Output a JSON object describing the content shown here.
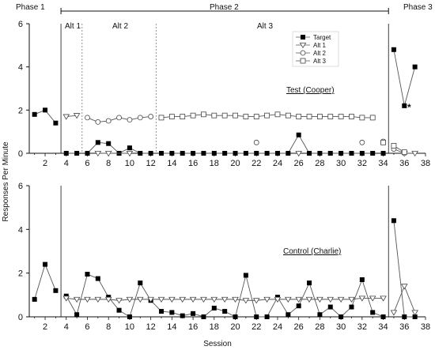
{
  "phase_labels": [
    "Phase 1",
    "Phase 2",
    "Phase 3"
  ],
  "top_condition_labels": [
    "Alt 1",
    "Alt 2",
    "Alt 3"
  ],
  "y_axis_label": "Responses Per Minute",
  "x_axis_label": "Session",
  "legend": [
    {
      "label": "Target",
      "marker": "square-filled"
    },
    {
      "label": "Alt 1",
      "marker": "triangle-down-open"
    },
    {
      "label": "Alt 2",
      "marker": "circle-open"
    },
    {
      "label": "Alt 3",
      "marker": "square-open"
    }
  ],
  "colors": {
    "line": "#555555",
    "marker_fill": "#000000",
    "open_fill": "#ffffff",
    "dashed": "#777777"
  },
  "chart_data": [
    {
      "type": "line",
      "panel_label": "Test (Cooper)",
      "xlim": [
        0.5,
        38
      ],
      "ylim": [
        0,
        6
      ],
      "x_ticks": [
        2,
        4,
        6,
        8,
        10,
        12,
        14,
        16,
        18,
        20,
        22,
        24,
        26,
        28,
        30,
        32,
        34,
        36,
        38
      ],
      "y_ticks": [
        0,
        2,
        4,
        6
      ],
      "phase_change_sessions": [
        3.5,
        34.5
      ],
      "condition_change_sessions": [
        5.5,
        12.5
      ],
      "annotation": "*",
      "series": [
        {
          "name": "Target",
          "marker": "square-filled",
          "segments": [
            [
              [
                1,
                1.8
              ],
              [
                2,
                2.0
              ],
              [
                3,
                1.4
              ]
            ],
            [
              [
                4,
                0
              ],
              [
                5,
                0
              ]
            ],
            [
              [
                6,
                0
              ],
              [
                7,
                0.5
              ],
              [
                8,
                0.45
              ],
              [
                9,
                0
              ],
              [
                10,
                0.25
              ],
              [
                11,
                0
              ],
              [
                12,
                0
              ]
            ],
            [
              [
                13,
                0
              ],
              [
                14,
                0
              ],
              [
                15,
                0
              ],
              [
                16,
                0
              ],
              [
                17,
                0
              ],
              [
                18,
                0
              ],
              [
                19,
                0
              ],
              [
                20,
                0
              ],
              [
                21,
                0
              ],
              [
                22,
                0
              ],
              [
                23,
                0
              ],
              [
                24,
                0
              ],
              [
                25,
                0
              ],
              [
                26,
                0.85
              ],
              [
                27,
                0
              ],
              [
                28,
                0
              ],
              [
                29,
                0
              ],
              [
                30,
                0
              ],
              [
                31,
                0
              ],
              [
                32,
                0
              ],
              [
                33,
                0
              ]
            ],
            [
              [
                34,
                0
              ]
            ],
            [
              [
                35,
                4.8
              ],
              [
                36,
                2.2
              ],
              [
                37,
                4.0
              ]
            ]
          ]
        },
        {
          "name": "Alt 1",
          "marker": "triangle-down-open",
          "segments": [
            [
              [
                4,
                1.7
              ],
              [
                5,
                1.75
              ]
            ],
            [
              [
                7,
                0
              ],
              [
                8,
                0
              ],
              [
                10,
                0
              ]
            ],
            [
              [
                26,
                0
              ]
            ],
            [
              [
                36,
                0
              ],
              [
                37,
                0
              ]
            ]
          ]
        },
        {
          "name": "Alt 2",
          "marker": "circle-open",
          "segments": [
            [
              [
                6,
                1.65
              ],
              [
                7,
                1.45
              ],
              [
                8,
                1.5
              ],
              [
                9,
                1.65
              ],
              [
                10,
                1.55
              ],
              [
                11,
                1.65
              ],
              [
                12,
                1.7
              ]
            ],
            [
              [
                22,
                0.5
              ]
            ],
            [
              [
                32,
                0.5
              ]
            ],
            [
              [
                34,
                0.55
              ]
            ],
            [
              [
                35,
                0.2
              ],
              [
                36,
                0
              ]
            ]
          ]
        },
        {
          "name": "Alt 3",
          "marker": "square-open",
          "segments": [
            [
              [
                13,
                1.65
              ],
              [
                14,
                1.7
              ],
              [
                15,
                1.7
              ],
              [
                16,
                1.75
              ],
              [
                17,
                1.8
              ],
              [
                18,
                1.75
              ],
              [
                19,
                1.75
              ],
              [
                20,
                1.75
              ],
              [
                21,
                1.7
              ],
              [
                22,
                1.7
              ],
              [
                23,
                1.75
              ],
              [
                24,
                1.8
              ],
              [
                25,
                1.75
              ],
              [
                26,
                1.7
              ],
              [
                27,
                1.7
              ],
              [
                28,
                1.7
              ],
              [
                29,
                1.7
              ],
              [
                30,
                1.7
              ],
              [
                31,
                1.7
              ],
              [
                32,
                1.65
              ],
              [
                33,
                1.65
              ]
            ],
            [
              [
                34,
                0.5
              ]
            ],
            [
              [
                35,
                0.35
              ],
              [
                36,
                0.05
              ]
            ]
          ]
        }
      ]
    },
    {
      "type": "line",
      "panel_label": "Control (Charlie)",
      "xlim": [
        0.5,
        38
      ],
      "ylim": [
        0,
        6
      ],
      "x_ticks": [
        2,
        4,
        6,
        8,
        10,
        12,
        14,
        16,
        18,
        20,
        22,
        24,
        26,
        28,
        30,
        32,
        34,
        36,
        38
      ],
      "y_ticks": [
        0,
        2,
        4,
        6
      ],
      "phase_change_sessions": [
        3.5,
        34.5
      ],
      "series": [
        {
          "name": "Target",
          "marker": "square-filled",
          "segments": [
            [
              [
                1,
                0.8
              ],
              [
                2,
                2.4
              ],
              [
                3,
                1.2
              ]
            ],
            [
              [
                4,
                0.95
              ],
              [
                5,
                0.1
              ],
              [
                6,
                1.95
              ],
              [
                7,
                1.75
              ],
              [
                8,
                0.9
              ],
              [
                9,
                0.3
              ],
              [
                10,
                0
              ],
              [
                11,
                1.55
              ],
              [
                12,
                0.75
              ],
              [
                13,
                0.25
              ],
              [
                14,
                0.2
              ],
              [
                15,
                0.05
              ],
              [
                16,
                0.15
              ],
              [
                17,
                0
              ],
              [
                18,
                0.4
              ],
              [
                19,
                0.25
              ],
              [
                20,
                0
              ],
              [
                21,
                1.9
              ],
              [
                22,
                0
              ],
              [
                23,
                0
              ],
              [
                24,
                0.9
              ],
              [
                25,
                0.1
              ],
              [
                26,
                0.5
              ],
              [
                27,
                1.55
              ],
              [
                28,
                0.1
              ],
              [
                29,
                0.45
              ],
              [
                30,
                0
              ],
              [
                31,
                0.45
              ],
              [
                32,
                1.7
              ],
              [
                33,
                0.2
              ],
              [
                34,
                0
              ]
            ],
            [
              [
                35,
                4.4
              ],
              [
                36,
                0
              ],
              [
                37,
                0
              ]
            ]
          ]
        },
        {
          "name": "Alt 1",
          "marker": "triangle-down-open",
          "segments": [
            [
              [
                4,
                0.85
              ],
              [
                5,
                0.8
              ],
              [
                6,
                0.8
              ],
              [
                7,
                0.8
              ],
              [
                8,
                0.8
              ],
              [
                9,
                0.75
              ],
              [
                10,
                0.8
              ],
              [
                11,
                0.8
              ],
              [
                12,
                0.8
              ],
              [
                13,
                0.8
              ],
              [
                14,
                0.8
              ],
              [
                15,
                0.8
              ],
              [
                16,
                0.8
              ],
              [
                17,
                0.8
              ],
              [
                18,
                0.8
              ],
              [
                19,
                0.8
              ],
              [
                20,
                0.8
              ],
              [
                21,
                0.75
              ],
              [
                22,
                0.75
              ],
              [
                23,
                0.8
              ],
              [
                24,
                0.8
              ],
              [
                25,
                0.8
              ],
              [
                26,
                0.8
              ],
              [
                27,
                0.8
              ],
              [
                28,
                0.8
              ],
              [
                29,
                0.8
              ],
              [
                30,
                0.8
              ],
              [
                31,
                0.8
              ],
              [
                32,
                0.85
              ],
              [
                33,
                0.85
              ],
              [
                34,
                0.85
              ]
            ],
            [
              [
                35,
                0.2
              ],
              [
                36,
                1.4
              ],
              [
                37,
                0.2
              ]
            ]
          ]
        }
      ]
    }
  ]
}
